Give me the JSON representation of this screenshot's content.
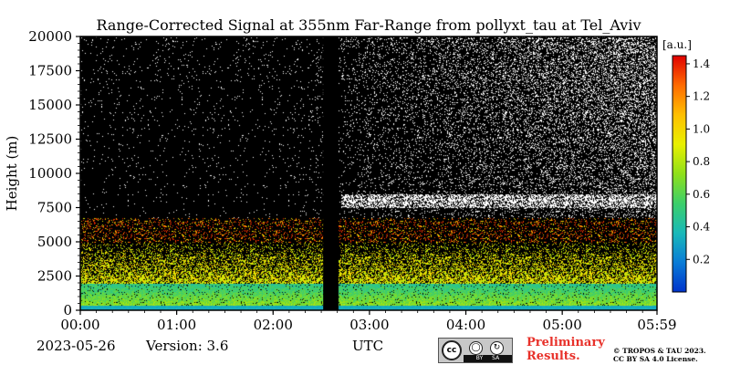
{
  "chart_data": {
    "type": "heatmap",
    "title": "Range-Corrected Signal at 355nm Far-Range from pollyxt_tau at Tel_Aviv",
    "ylabel": "Height (m)",
    "xlabel": "UTC",
    "x_ticks": [
      "00:00",
      "01:00",
      "02:00",
      "03:00",
      "04:00",
      "05:00",
      "05:59"
    ],
    "x_tick_hours": [
      0,
      1,
      2,
      3,
      4,
      5,
      5.983
    ],
    "xlim_hours": [
      0,
      5.983
    ],
    "y_ticks": [
      0,
      2500,
      5000,
      7500,
      10000,
      12500,
      15000,
      17500,
      20000
    ],
    "ylim": [
      0,
      20000
    ],
    "colorbar": {
      "unit": "[a.u.]",
      "ticks": [
        0.2,
        0.4,
        0.6,
        0.8,
        1.0,
        1.2,
        1.4
      ],
      "range": [
        0.0,
        1.45
      ],
      "colormap": [
        "#0033cc",
        "#0a7cd6",
        "#19b9b9",
        "#3ccf6a",
        "#8fe01a",
        "#e9f000",
        "#ffbf00",
        "#ff6a00",
        "#e00000"
      ]
    },
    "data_gap_hours": [
      2.52,
      2.67
    ],
    "features": {
      "boundary_layer_top_m": 2000,
      "elevated_layer_m": [
        5000,
        6800
      ],
      "aerosol_layer_m": [
        7500,
        8500
      ]
    },
    "background_color": "#000000",
    "noise_color": "#ffffff"
  },
  "footer": {
    "date": "2023-05-26",
    "version": "Version: 3.6",
    "utc_label": "UTC",
    "license_icon": "creative-commons-by-sa-icon",
    "license_badge": [
      "cc",
      "BY",
      "SA"
    ],
    "preliminary_line1": "Preliminary",
    "preliminary_line2": "Results.",
    "copyright_line1": "© TROPOS & TAU 2023.",
    "copyright_line2": "CC BY SA 4.0 License."
  }
}
